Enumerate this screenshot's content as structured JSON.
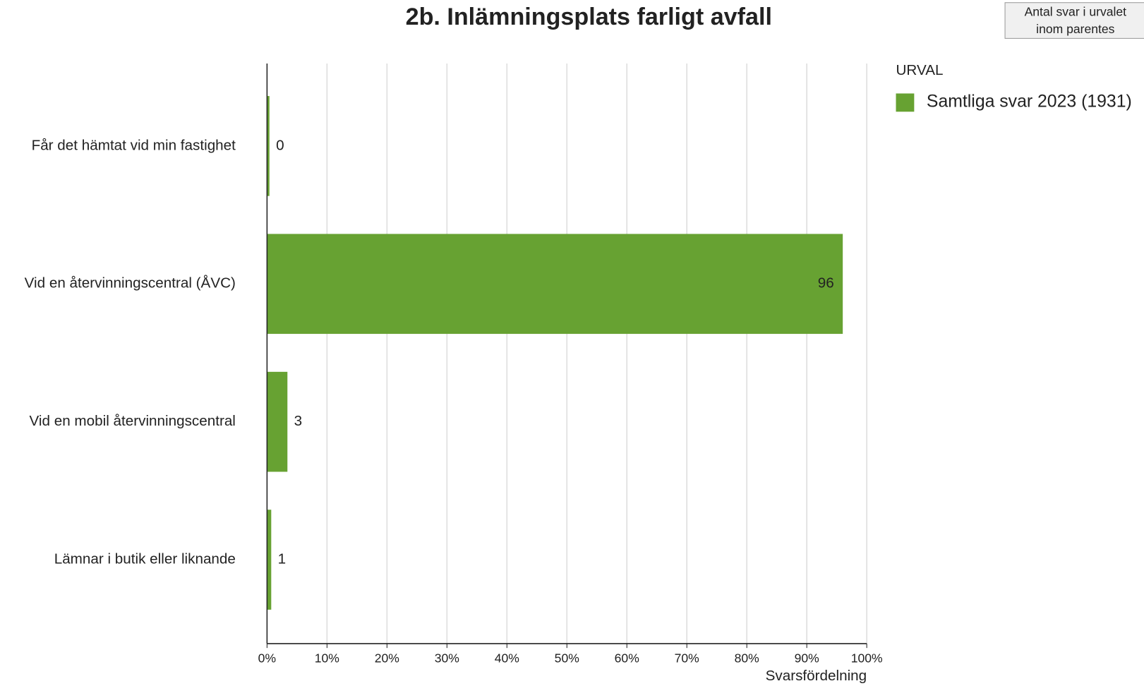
{
  "chart_data": {
    "type": "bar",
    "orientation": "horizontal",
    "title": "2b. Inlämningsplats farligt avfall",
    "note": [
      "Antal svar i urvalet",
      "inom parentes"
    ],
    "categories": [
      "Får det hämtat vid min fastighet",
      "Vid en återvinningscentral (ÅVC)",
      "Vid en mobil återvinningscentral",
      "Lämnar i butik eller liknande"
    ],
    "legend_title": "URVAL",
    "series": [
      {
        "name": "Samtliga svar 2023 (1931)",
        "color": "#67a232",
        "values": [
          0.4,
          96,
          3.4,
          0.7
        ],
        "value_labels": [
          "0",
          "96",
          "3",
          "1"
        ]
      }
    ],
    "xlabel": "Svarsfördelning",
    "xlim": [
      0,
      100
    ],
    "xticks": [
      {
        "value": 0,
        "label": "0%"
      },
      {
        "value": 10,
        "label": "10%"
      },
      {
        "value": 20,
        "label": "20%"
      },
      {
        "value": 30,
        "label": "30%"
      },
      {
        "value": 40,
        "label": "40%"
      },
      {
        "value": 50,
        "label": "50%"
      },
      {
        "value": 60,
        "label": "60%"
      },
      {
        "value": 70,
        "label": "70%"
      },
      {
        "value": 80,
        "label": "80%"
      },
      {
        "value": 90,
        "label": "90%"
      },
      {
        "value": 100,
        "label": "100%"
      }
    ],
    "grid": true,
    "legend": "right"
  }
}
